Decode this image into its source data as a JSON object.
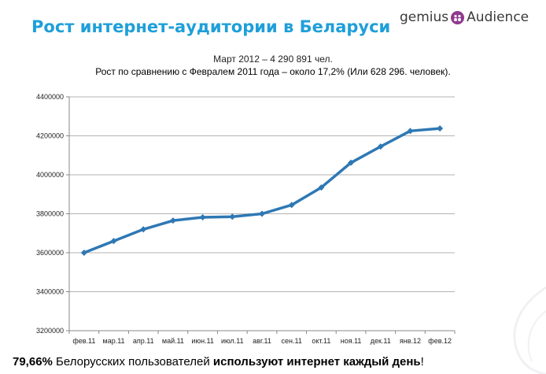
{
  "title": "Рост интернет-аудитории в Беларуси",
  "logo": {
    "left": "gemius",
    "right": "Audience"
  },
  "subtitle": {
    "line1": "Март 2012 – 4 290 891 чел.",
    "line2": "Рост по сравнению с Февралем 2011 года – около 17,2% (Или 628 296. человек)."
  },
  "footer": {
    "pct": "79,66%",
    "text1": " Белорусских пользователей ",
    "bold": "используют интернет каждый день",
    "end": "!"
  },
  "colors": {
    "title": "#1f9fd9",
    "line": "#2e78b4",
    "logo_badge": "#8e3a8e",
    "grid": "#9a9a9a"
  },
  "chart_data": {
    "type": "line",
    "categories": [
      "фев.11",
      "мар.11",
      "апр.11",
      "май.11",
      "июн.11",
      "июл.11",
      "авг.11",
      "сен.11",
      "окт.11",
      "ноя.11",
      "дек.11",
      "янв.12",
      "фев.12"
    ],
    "values": [
      3600000,
      3660000,
      3720000,
      3765000,
      3782000,
      3785000,
      3800000,
      3845000,
      3935000,
      4062000,
      4145000,
      4225000,
      4238000
    ],
    "yticks": [
      "3200000",
      "3400000",
      "3600000",
      "3800000",
      "4000000",
      "4200000",
      "4400000"
    ],
    "ylim": [
      3200000,
      4400000
    ],
    "grid": true,
    "legend": "none"
  }
}
